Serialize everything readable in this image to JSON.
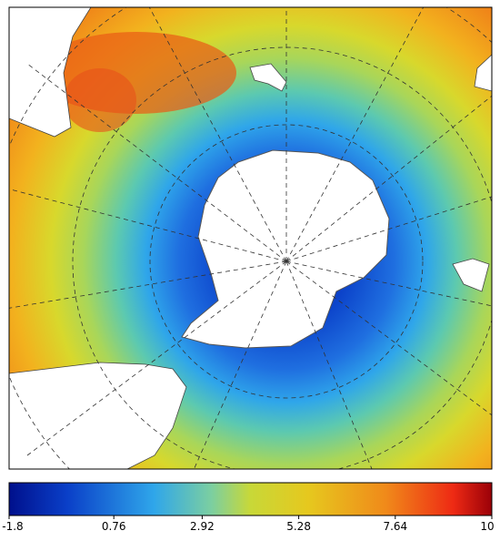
{
  "colorbar": {
    "lim": [
      -1.8,
      10
    ],
    "ticks": [
      -1.8,
      0.76,
      2.92,
      5.28,
      7.64,
      10
    ]
  }
}
